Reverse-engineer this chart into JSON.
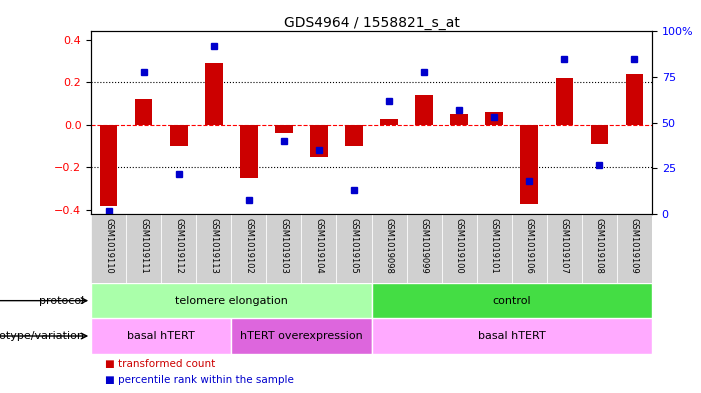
{
  "title": "GDS4964 / 1558821_s_at",
  "samples": [
    "GSM1019110",
    "GSM1019111",
    "GSM1019112",
    "GSM1019113",
    "GSM1019102",
    "GSM1019103",
    "GSM1019104",
    "GSM1019105",
    "GSM1019098",
    "GSM1019099",
    "GSM1019100",
    "GSM1019101",
    "GSM1019106",
    "GSM1019107",
    "GSM1019108",
    "GSM1019109"
  ],
  "bar_values": [
    -0.38,
    0.12,
    -0.1,
    0.29,
    -0.25,
    -0.04,
    -0.15,
    -0.1,
    0.03,
    0.14,
    0.05,
    0.06,
    -0.37,
    0.22,
    -0.09,
    0.24
  ],
  "dot_values": [
    2,
    78,
    22,
    92,
    8,
    40,
    35,
    13,
    62,
    78,
    57,
    53,
    18,
    85,
    27,
    85
  ],
  "bar_color": "#cc0000",
  "dot_color": "#0000cc",
  "ylim_left": [
    -0.42,
    0.44
  ],
  "ylim_right": [
    0,
    100
  ],
  "yticks_left": [
    -0.4,
    -0.2,
    0.0,
    0.2,
    0.4
  ],
  "yticks_right": [
    0,
    25,
    50,
    75,
    100
  ],
  "protocol_groups": [
    {
      "label": "telomere elongation",
      "start": 0,
      "end": 8,
      "color": "#aaffaa"
    },
    {
      "label": "control",
      "start": 8,
      "end": 16,
      "color": "#44dd44"
    }
  ],
  "genotype_groups": [
    {
      "label": "basal hTERT",
      "start": 0,
      "end": 4,
      "color": "#ffaaff"
    },
    {
      "label": "hTERT overexpression",
      "start": 4,
      "end": 8,
      "color": "#dd66dd"
    },
    {
      "label": "basal hTERT",
      "start": 8,
      "end": 16,
      "color": "#ffaaff"
    }
  ],
  "legend_items": [
    {
      "label": "transformed count",
      "color": "#cc0000"
    },
    {
      "label": "percentile rank within the sample",
      "color": "#0000cc"
    }
  ],
  "row_labels": [
    "protocol",
    "genotype/variation"
  ],
  "title_fontsize": 10,
  "tick_fontsize": 8,
  "label_fontsize": 8,
  "bar_width": 0.5,
  "sample_label_fontsize": 6,
  "annotation_fontsize": 8
}
